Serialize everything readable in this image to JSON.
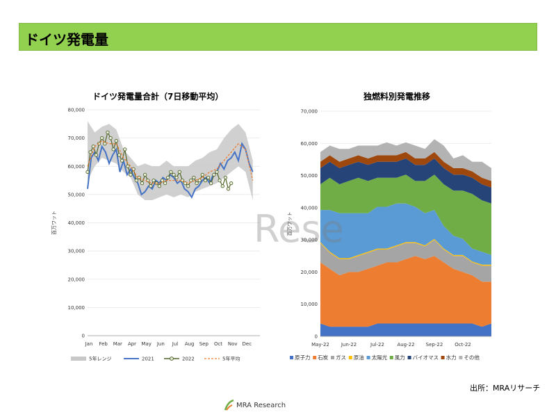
{
  "slide": {
    "title": "ドイツ発電量",
    "source": "出所：MRAリサーチ",
    "footer_brand": "MRA Research",
    "watermark": "Rese"
  },
  "chart_data": [
    {
      "type": "line",
      "title": "ドイツ発電量合計（7日移動平均）",
      "ylabel": "百万ワット",
      "ylim": [
        0,
        80000
      ],
      "yticks": [
        "0",
        "10,000",
        "20,000",
        "30,000",
        "40,000",
        "50,000",
        "60,000",
        "70,000",
        "80,000"
      ],
      "x_labels": [
        "Jan",
        "Feb",
        "Mar",
        "Apr",
        "May",
        "Jun",
        "Jul",
        "Aug",
        "Sep",
        "Oct",
        "Nov",
        "Dec"
      ],
      "series": [
        {
          "name": "5年レンジ",
          "color": "#c8c8c8",
          "months": [
            1,
            1.5,
            2,
            2.5,
            3,
            3.5,
            4,
            4.5,
            5,
            5.5,
            6,
            6.5,
            7,
            7.5,
            8,
            8.5,
            9,
            9.5,
            10,
            10.5,
            11,
            11.5,
            12,
            12.5
          ],
          "low": [
            55000,
            60000,
            63000,
            62000,
            61000,
            58000,
            56000,
            50000,
            48000,
            48000,
            49000,
            50000,
            49000,
            50000,
            49000,
            51000,
            52000,
            53000,
            54000,
            56000,
            58000,
            60000,
            58000,
            48000
          ],
          "high": [
            76000,
            72000,
            74000,
            75000,
            73000,
            66000,
            63000,
            60000,
            61000,
            60000,
            60000,
            62000,
            60000,
            60000,
            60000,
            62000,
            63000,
            65000,
            66000,
            70000,
            73000,
            75000,
            72000,
            62000
          ]
        },
        {
          "name": "2021",
          "color": "#4472c4",
          "months": [
            1,
            1.25,
            1.5,
            1.75,
            2,
            2.25,
            2.5,
            2.75,
            3,
            3.25,
            3.5,
            3.75,
            4,
            4.25,
            4.5,
            4.75,
            5,
            5.25,
            5.5,
            5.75,
            6,
            6.25,
            6.5,
            6.75,
            7,
            7.25,
            7.5,
            7.75,
            8,
            8.25,
            8.5,
            8.75,
            9,
            9.25,
            9.5,
            9.75,
            10,
            10.25,
            10.5,
            10.75,
            11,
            11.25,
            11.5,
            11.75,
            12,
            12.25,
            12.5
          ],
          "values": [
            52000,
            63000,
            65000,
            62000,
            67000,
            65000,
            61000,
            64000,
            66000,
            58000,
            62000,
            57000,
            59000,
            56000,
            54000,
            50000,
            51000,
            53000,
            52000,
            55000,
            54000,
            56000,
            55000,
            57000,
            56000,
            54000,
            55000,
            52000,
            51000,
            49000,
            52000,
            53000,
            55000,
            56000,
            54000,
            57000,
            58000,
            61000,
            59000,
            62000,
            63000,
            65000,
            62000,
            68000,
            66000,
            61000,
            58000
          ]
        },
        {
          "name": "2022",
          "color": "#4f6228",
          "marker_fill": "#ebf1de",
          "months": [
            1,
            1.2,
            1.4,
            1.6,
            1.8,
            2,
            2.2,
            2.4,
            2.6,
            2.8,
            3,
            3.2,
            3.4,
            3.6,
            3.8,
            4,
            4.2,
            4.4,
            4.6,
            4.8,
            5,
            5.2,
            5.4,
            5.6,
            5.8,
            6,
            6.2,
            6.4,
            6.6,
            6.8,
            7,
            7.2,
            7.4,
            7.6,
            7.8,
            8,
            8.2,
            8.4,
            8.6,
            8.8,
            9,
            9.2,
            9.4,
            9.6,
            9.8,
            10,
            10.2,
            10.4,
            10.6,
            10.8,
            11
          ],
          "values": [
            58000,
            65000,
            67000,
            64000,
            68000,
            70000,
            68000,
            72000,
            70000,
            66000,
            69000,
            64000,
            62000,
            66000,
            60000,
            57000,
            59000,
            55000,
            56000,
            54000,
            57000,
            55000,
            53000,
            55000,
            54000,
            53000,
            55000,
            54000,
            56000,
            58000,
            57000,
            56000,
            58000,
            55000,
            54000,
            53000,
            55000,
            56000,
            54000,
            55000,
            57000,
            55000,
            56000,
            54000,
            57000,
            58000,
            55000,
            53000,
            56000,
            52000,
            54000
          ]
        },
        {
          "name": "5年平均",
          "color": "#ed7d31",
          "months": [
            1,
            1.5,
            2,
            2.5,
            3,
            3.5,
            4,
            4.5,
            5,
            5.5,
            6,
            6.5,
            7,
            7.5,
            8,
            8.5,
            9,
            9.5,
            10,
            10.5,
            11,
            11.5,
            12,
            12.5
          ],
          "values": [
            60000,
            67000,
            69000,
            68000,
            68000,
            63000,
            60000,
            56000,
            55000,
            54000,
            54000,
            55000,
            55000,
            55000,
            54000,
            55000,
            56000,
            58000,
            59000,
            62000,
            65000,
            68000,
            66000,
            55000
          ]
        }
      ]
    },
    {
      "type": "area",
      "title": "独燃料別発電推移",
      "ylabel": "百万ワット",
      "ylim": [
        0,
        70000
      ],
      "yticks": [
        "0",
        "10,000",
        "20,000",
        "30,000",
        "40,000",
        "50,000",
        "60,000",
        "70,000"
      ],
      "x_labels": [
        "May-22",
        "Jun-22",
        "Jul-22",
        "Aug-22",
        "Sep-22",
        "Oct-22"
      ],
      "x_positions": [
        0,
        1,
        2,
        3,
        4,
        5
      ],
      "x": [
        0,
        0.33,
        0.67,
        1,
        1.33,
        1.67,
        2,
        2.33,
        2.67,
        3,
        3.33,
        3.67,
        4,
        4.33,
        4.67,
        5,
        5.33,
        5.67,
        6
      ],
      "series": [
        {
          "name": "原子力",
          "color": "#4472c4",
          "values": [
            4000,
            3000,
            3000,
            3000,
            3000,
            3000,
            4000,
            4000,
            4000,
            4000,
            4000,
            4000,
            4000,
            4000,
            4000,
            4000,
            4000,
            3000,
            4000
          ]
        },
        {
          "name": "石炭",
          "color": "#ed7d31",
          "values": [
            19000,
            18000,
            16000,
            17000,
            17000,
            18000,
            18000,
            19000,
            19000,
            20000,
            21000,
            20000,
            21000,
            19000,
            17000,
            16000,
            15000,
            14000,
            13000
          ]
        },
        {
          "name": "ガス",
          "color": "#a5a5a5",
          "values": [
            6000,
            5000,
            5000,
            4000,
            5000,
            5000,
            5000,
            4000,
            5000,
            5000,
            4000,
            4000,
            5000,
            4000,
            4000,
            5000,
            4000,
            5000,
            5000
          ]
        },
        {
          "name": "原油",
          "color": "#ffc000",
          "values": [
            300,
            300,
            300,
            300,
            300,
            300,
            300,
            300,
            300,
            300,
            300,
            300,
            300,
            300,
            300,
            300,
            300,
            300,
            300
          ]
        },
        {
          "name": "太陽光",
          "color": "#5b9bd5",
          "values": [
            10000,
            13000,
            14000,
            14000,
            13000,
            12000,
            13000,
            13000,
            13000,
            12000,
            11000,
            10000,
            9000,
            7000,
            6000,
            5000,
            4000,
            4000,
            3000
          ]
        },
        {
          "name": "風力",
          "color": "#70ad47",
          "values": [
            8000,
            10000,
            9000,
            10000,
            11000,
            10000,
            9000,
            9000,
            8000,
            9000,
            8000,
            10000,
            11000,
            13000,
            14000,
            15000,
            17000,
            16000,
            16000
          ]
        },
        {
          "name": "バイオマス",
          "color": "#264478",
          "values": [
            5000,
            5000,
            5000,
            5000,
            5000,
            5000,
            5000,
            5000,
            5000,
            5000,
            5000,
            5000,
            5000,
            5000,
            5000,
            5000,
            5000,
            5000,
            5000
          ]
        },
        {
          "name": "水力",
          "color": "#9e480e",
          "values": [
            2000,
            2000,
            2000,
            2000,
            2000,
            2000,
            2000,
            2000,
            2000,
            2000,
            2000,
            2000,
            2000,
            2000,
            2000,
            2000,
            2000,
            2000,
            2000
          ]
        },
        {
          "name": "その他",
          "color": "#b3b3b3",
          "values": [
            3000,
            3000,
            4000,
            3000,
            3000,
            4000,
            3000,
            4000,
            3000,
            3000,
            4000,
            3000,
            4000,
            5000,
            3000,
            4000,
            3000,
            5000,
            4000
          ]
        }
      ]
    }
  ]
}
